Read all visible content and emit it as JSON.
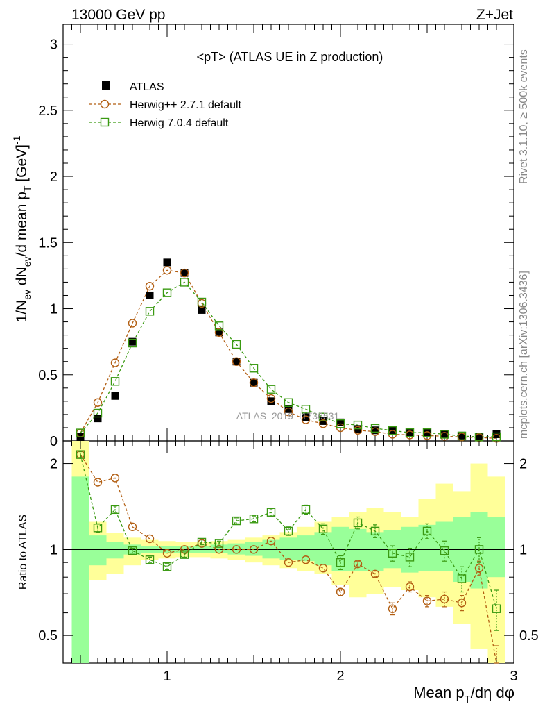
{
  "header": {
    "left": "13000 GeV pp",
    "right": "Z+Jet"
  },
  "side": {
    "rivet": "Rivet 3.1.10, ≥ 500k events",
    "mcplots": "mcplots.cern.ch [arXiv:1306.3436]"
  },
  "main": {
    "title": "<pT> (ATLAS UE in Z production)",
    "watermark": "ATLAS_2019_I1736531",
    "ylabel": "1/N_ev dN_ev/d mean p_T [GeV]^-1",
    "yticks": [
      "0",
      "0.5",
      "1",
      "1.5",
      "2",
      "2.5",
      "3"
    ]
  },
  "ratio": {
    "ylabel": "Ratio to ATLAS",
    "yticks": [
      "0.5",
      "1",
      "2"
    ]
  },
  "xaxis": {
    "label": "Mean p_T/dη dφ",
    "ticks": [
      "1",
      "2",
      "3"
    ]
  },
  "legend": [
    {
      "label": "ATLAS",
      "color": "#000000",
      "marker": "filled-square"
    },
    {
      "label": "Herwig++ 2.7.1 default",
      "color": "#b25e12",
      "marker": "open-circle"
    },
    {
      "label": "Herwig 7.0.4 default",
      "color": "#3a9a12",
      "marker": "open-square"
    }
  ],
  "colors": {
    "band_outer": "#ffff99",
    "band_inner": "#99ff99",
    "herwigpp": "#b25e12",
    "herwig7": "#3a9a12",
    "data": "#000000"
  },
  "chart_data": {
    "type": "scatter",
    "xlim": [
      0.4,
      3.0
    ],
    "ylim": [
      0,
      3.15
    ],
    "ratio_ylim": [
      0.4,
      2.4
    ],
    "ratio_scale": "log",
    "x": [
      0.5,
      0.6,
      0.7,
      0.8,
      0.9,
      1.0,
      1.1,
      1.2,
      1.3,
      1.4,
      1.5,
      1.6,
      1.7,
      1.8,
      1.9,
      2.0,
      2.1,
      2.2,
      2.3,
      2.4,
      2.5,
      2.6,
      2.7,
      2.8,
      2.9
    ],
    "series": [
      {
        "name": "ATLAS",
        "values": [
          0.03,
          0.17,
          0.34,
          0.75,
          1.1,
          1.35,
          1.27,
          0.99,
          0.82,
          0.6,
          0.44,
          0.3,
          0.24,
          0.18,
          0.15,
          0.14,
          0.09,
          0.08,
          0.08,
          0.06,
          0.06,
          0.05,
          0.04,
          0.03,
          0.05
        ]
      },
      {
        "name": "Herwig++ 2.7.1 default",
        "values": [
          0.06,
          0.29,
          0.59,
          0.89,
          1.17,
          1.29,
          1.27,
          1.04,
          0.82,
          0.6,
          0.44,
          0.32,
          0.22,
          0.16,
          0.13,
          0.1,
          0.08,
          0.07,
          0.05,
          0.045,
          0.04,
          0.035,
          0.03,
          0.025,
          0.02
        ]
      },
      {
        "name": "Herwig 7.0.4 default",
        "values": [
          0.06,
          0.21,
          0.45,
          0.74,
          0.98,
          1.12,
          1.2,
          1.05,
          0.87,
          0.73,
          0.55,
          0.39,
          0.29,
          0.24,
          0.18,
          0.13,
          0.12,
          0.095,
          0.078,
          0.062,
          0.062,
          0.05,
          0.037,
          0.03,
          0.031
        ]
      }
    ],
    "ratio_series": [
      {
        "name": "Herwig++ 2.7.1 default",
        "values": [
          2.15,
          1.72,
          1.78,
          1.2,
          1.09,
          0.97,
          1.0,
          1.05,
          1.0,
          1.0,
          1.0,
          1.07,
          0.9,
          0.92,
          0.86,
          0.71,
          0.89,
          0.82,
          0.62,
          0.74,
          0.66,
          0.67,
          0.65,
          0.86,
          0.4
        ],
        "errors": [
          0,
          0,
          0,
          0,
          0,
          0,
          0,
          0,
          0,
          0,
          0,
          0,
          0,
          0,
          0,
          0.02,
          0.02,
          0.02,
          0.03,
          0.03,
          0.03,
          0.04,
          0.04,
          0.05,
          0.06
        ]
      },
      {
        "name": "Herwig 7.0.4 default",
        "values": [
          2.15,
          1.19,
          1.38,
          0.99,
          0.92,
          0.87,
          0.96,
          1.06,
          1.05,
          1.26,
          1.28,
          1.35,
          1.16,
          1.38,
          1.18,
          0.9,
          1.24,
          1.16,
          0.97,
          0.94,
          1.16,
          0.99,
          0.79,
          1.0,
          0.62
        ],
        "errors": [
          0.05,
          0.04,
          0.04,
          0.02,
          0.02,
          0.02,
          0.02,
          0.02,
          0.02,
          0.03,
          0.03,
          0.04,
          0.04,
          0.05,
          0.05,
          0.05,
          0.06,
          0.06,
          0.06,
          0.07,
          0.07,
          0.08,
          0.08,
          0.1,
          0.1
        ]
      }
    ],
    "uncertainty_bands": {
      "x_edges": [
        0.45,
        0.55,
        0.65,
        0.75,
        0.85,
        0.95,
        1.05,
        1.15,
        1.25,
        1.35,
        1.45,
        1.55,
        1.65,
        1.75,
        1.85,
        1.95,
        2.05,
        2.15,
        2.25,
        2.35,
        2.45,
        2.55,
        2.65,
        2.75,
        2.85,
        2.95
      ],
      "outer_low": [
        0.4,
        0.78,
        0.82,
        0.88,
        0.92,
        0.93,
        0.94,
        0.94,
        0.93,
        0.92,
        0.9,
        0.88,
        0.86,
        0.84,
        0.82,
        0.75,
        0.68,
        0.7,
        0.74,
        0.72,
        0.68,
        0.63,
        0.55,
        0.45,
        0.4
      ],
      "outer_high": [
        2.4,
        1.25,
        1.14,
        1.1,
        1.08,
        1.07,
        1.06,
        1.06,
        1.07,
        1.08,
        1.1,
        1.12,
        1.15,
        1.2,
        1.25,
        1.3,
        1.35,
        1.4,
        1.35,
        1.3,
        1.5,
        1.7,
        1.6,
        2.0,
        1.8
      ],
      "inner_low": [
        0.4,
        0.88,
        0.93,
        0.96,
        0.97,
        0.97,
        0.97,
        0.97,
        0.97,
        0.96,
        0.95,
        0.93,
        0.92,
        0.91,
        0.88,
        0.84,
        0.84,
        0.84,
        0.86,
        0.83,
        0.84,
        0.84,
        0.77,
        0.73,
        0.8
      ],
      "inner_high": [
        1.8,
        1.12,
        1.06,
        1.04,
        1.03,
        1.03,
        1.03,
        1.03,
        1.04,
        1.05,
        1.06,
        1.08,
        1.1,
        1.12,
        1.15,
        1.2,
        1.18,
        1.15,
        1.17,
        1.2,
        1.22,
        1.25,
        1.3,
        1.35,
        1.3
      ]
    }
  }
}
